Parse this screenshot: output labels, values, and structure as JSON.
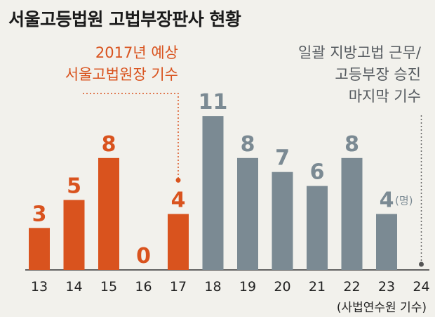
{
  "title": "서울고등법원 고법부장판사 현황",
  "annotations": {
    "orange": [
      "2017년 예상",
      "서울고법원장 기수"
    ],
    "gray": [
      "일괄 지방고법 근무/",
      "고등부장 승진",
      "마지막 기수"
    ]
  },
  "unit_label": "(명)",
  "xlabel": "(사법연수원 기수)",
  "colors": {
    "orange": "#d9531e",
    "gray": "#7b8a93",
    "axis": "#333333"
  },
  "chart_data": {
    "type": "bar",
    "categories": [
      "13",
      "14",
      "15",
      "16",
      "17",
      "18",
      "19",
      "20",
      "21",
      "22",
      "23",
      "24"
    ],
    "values": [
      3,
      5,
      8,
      0,
      4,
      11,
      8,
      7,
      6,
      8,
      4,
      null
    ],
    "highlight": [
      "13",
      "14",
      "15",
      "16",
      "17"
    ],
    "ylim": [
      0,
      12
    ],
    "grid": false,
    "xlabel": "(사법연수원 기수)"
  }
}
